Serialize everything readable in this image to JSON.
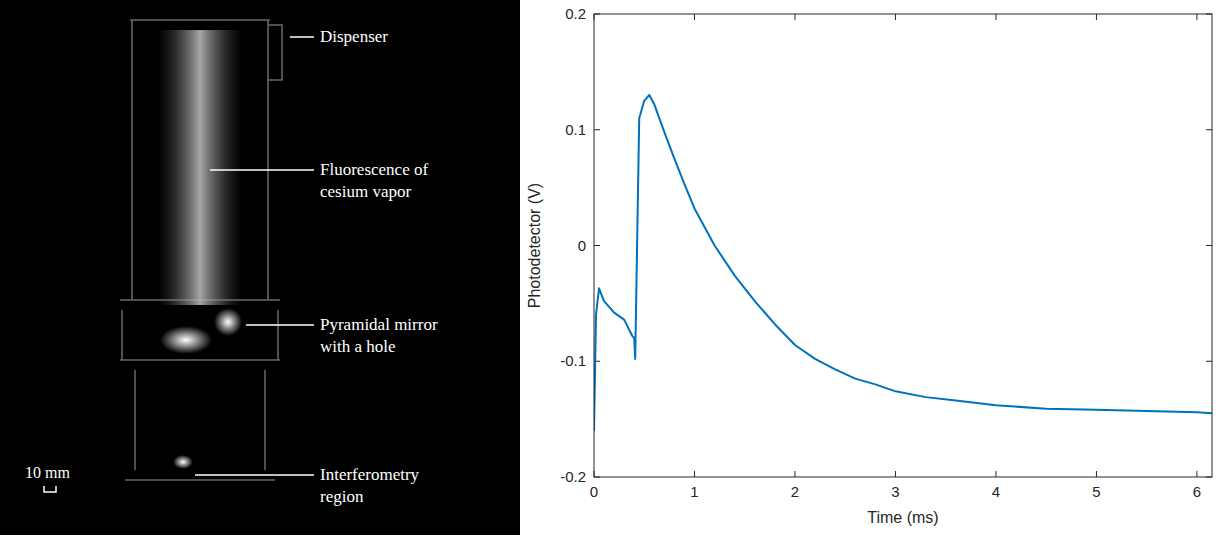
{
  "photo": {
    "labels": [
      "Dispenser",
      "Fluorescence of cesium vapor",
      "Pyramidal mirror with a hole",
      "Interferometry region"
    ],
    "scale_bar": "10 mm"
  },
  "chart_data": {
    "type": "line",
    "x_label": "Time (ms)",
    "y_label": "Photodetector (V)",
    "xlim": [
      0,
      6.15
    ],
    "ylim": [
      -0.2,
      0.2
    ],
    "xticks": [
      0,
      1,
      2,
      3,
      4,
      5,
      6
    ],
    "yticks": [
      -0.2,
      -0.1,
      0,
      0.1,
      0.2
    ],
    "grid": false,
    "series": [
      {
        "name": "Photodetector",
        "color": "#0072bd",
        "x": [
          0,
          0.02,
          0.05,
          0.1,
          0.2,
          0.3,
          0.38,
          0.4,
          0.41,
          0.45,
          0.5,
          0.55,
          0.6,
          0.7,
          0.8,
          0.9,
          1.0,
          1.2,
          1.4,
          1.6,
          1.8,
          2.0,
          2.2,
          2.4,
          2.6,
          2.8,
          3.0,
          3.3,
          3.6,
          4.0,
          4.5,
          5.0,
          5.5,
          6.0,
          6.15
        ],
        "values": [
          -0.16,
          -0.06,
          -0.037,
          -0.048,
          -0.058,
          -0.064,
          -0.078,
          -0.08,
          -0.098,
          0.11,
          0.125,
          0.13,
          0.122,
          0.098,
          0.075,
          0.053,
          0.032,
          0.0,
          -0.026,
          -0.048,
          -0.068,
          -0.086,
          -0.098,
          -0.107,
          -0.115,
          -0.12,
          -0.126,
          -0.131,
          -0.134,
          -0.138,
          -0.141,
          -0.142,
          -0.143,
          -0.144,
          -0.145
        ]
      }
    ]
  }
}
